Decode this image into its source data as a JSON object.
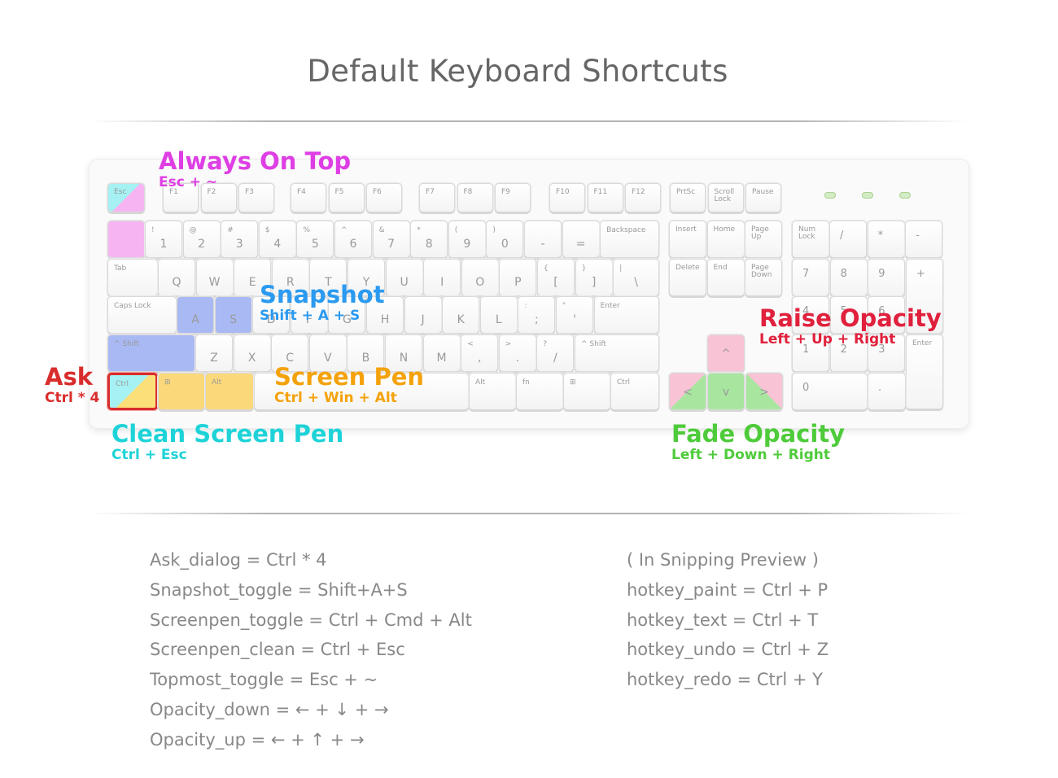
{
  "title": "Default Keyboard Shortcuts",
  "colors": {
    "magenta": "#de3ee4",
    "blue": "#2b9af0",
    "red": "#e0203c",
    "orange": "#f4a20c",
    "cyan": "#1ed3d8",
    "green": "#4ecb3a",
    "ask_red": "#d92d2d"
  },
  "annotations": {
    "always_on_top": {
      "title": "Always On Top",
      "combo": "Esc + ~"
    },
    "snapshot": {
      "title": "Snapshot",
      "combo": "Shift + A + S"
    },
    "raise_opacity": {
      "title": "Raise Opacity",
      "combo": "Left + Up + Right"
    },
    "ask": {
      "title": "Ask",
      "combo": "Ctrl * 4"
    },
    "screen_pen": {
      "title": "Screen Pen",
      "combo": "Ctrl + Win + Alt"
    },
    "clean_screen_pen": {
      "title": "Clean Screen Pen",
      "combo": "Ctrl + Esc"
    },
    "fade_opacity": {
      "title": "Fade Opacity",
      "combo": "Left + Down + Right"
    }
  },
  "keys": {
    "esc": "Esc",
    "f1": "F1",
    "f2": "F2",
    "f3": "F3",
    "f4": "F4",
    "f5": "F5",
    "f6": "F6",
    "f7": "F7",
    "f8": "F8",
    "f9": "F9",
    "f10": "F10",
    "f11": "F11",
    "f12": "F12",
    "prtsc": "PrtSc",
    "scroll_lock": "Scroll Lock",
    "pause": "Pause",
    "n1": "1",
    "n1s": "!",
    "n2": "2",
    "n2s": "@",
    "n3": "3",
    "n3s": "#",
    "n4": "4",
    "n4s": "$",
    "n5": "5",
    "n5s": "%",
    "n6": "6",
    "n6s": "^",
    "n7": "7",
    "n7s": "&",
    "n8": "8",
    "n8s": "*",
    "n9": "9",
    "n9s": "(",
    "n0": "0",
    "n0s": ")",
    "minus": "-",
    "minus_s": "_",
    "equal": "=",
    "equal_s": "+",
    "backspace": "Backspace",
    "tab": "Tab",
    "q": "Q",
    "w": "W",
    "e": "E",
    "r": "R",
    "t": "T",
    "y": "Y",
    "u": "U",
    "i": "I",
    "o": "O",
    "p": "P",
    "lbracket": "[",
    "lbracket_s": "{",
    "rbracket": "]",
    "rbracket_s": "}",
    "backslash": "\\",
    "backslash_s": "|",
    "caps_lock": "Caps Lock",
    "a": "A",
    "s": "S",
    "d": "D",
    "f": "F",
    "g": "G",
    "h": "H",
    "j": "J",
    "k": "K",
    "l": "L",
    "semicolon": ";",
    "semicolon_s": ":",
    "quote": "'",
    "quote_s": "\"",
    "enter": "Enter",
    "lshift": "^ Shift",
    "z": "Z",
    "x": "X",
    "c": "C",
    "v": "V",
    "b": "B",
    "n": "N",
    "m": "M",
    "comma": ",",
    "comma_s": "<",
    "period": ".",
    "period_s": ">",
    "slash": "/",
    "slash_s": "?",
    "rshift": "^ Shift",
    "lctrl": "Ctrl",
    "lwin": "⊞",
    "lalt": "Alt",
    "ralt": "Alt",
    "fn": "fn",
    "rwin": "⊞",
    "rctrl": "Ctrl",
    "insert": "Insert",
    "home": "Home",
    "page_up": "Page Up",
    "delete": "Delete",
    "end": "End",
    "page_down": "Page Down",
    "up": "^",
    "left": "<",
    "down": "v",
    "right": ">",
    "num_lock": "Num Lock",
    "np_div": "/",
    "np_mul": "*",
    "np_minus": "-",
    "np7": "7",
    "np8": "8",
    "np9": "9",
    "np_plus": "+",
    "np4": "4",
    "np5": "5",
    "np6": "6",
    "np1": "1",
    "np2": "2",
    "np3": "3",
    "np_enter": "Enter",
    "np0": "0",
    "np_dot": "."
  },
  "list_left": [
    "Ask_dialog = Ctrl * 4",
    "Snapshot_toggle = Shift+A+S",
    "Screenpen_toggle = Ctrl + Cmd + Alt",
    "Screenpen_clean = Ctrl + Esc",
    "Topmost_toggle = Esc + ~",
    "Opacity_down = ← + ↓ + →",
    "Opacity_up =  ← + ↑ + →"
  ],
  "list_right": [
    "( In Snipping Preview )",
    "hotkey_paint = Ctrl + P",
    "hotkey_text = Ctrl + T",
    "hotkey_undo = Ctrl + Z",
    "hotkey_redo = Ctrl + Y"
  ]
}
